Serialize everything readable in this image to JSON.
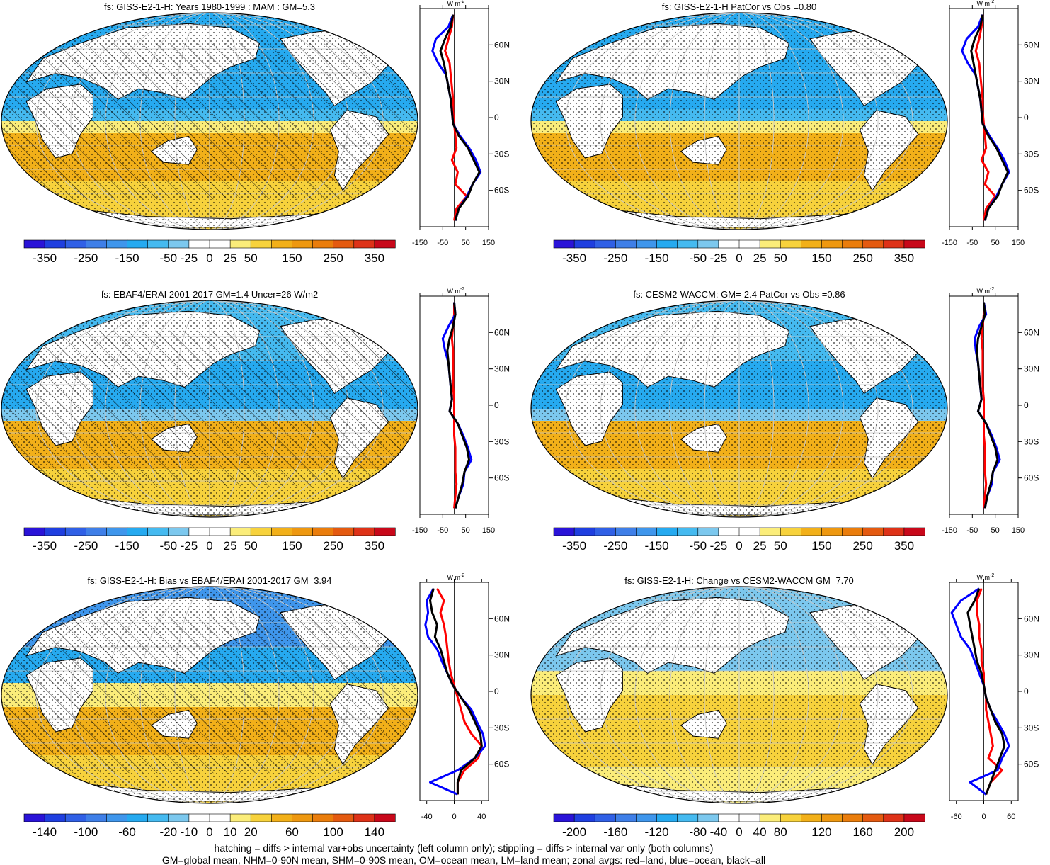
{
  "figure": {
    "caption_line1": "hatching = diffs > internal var+obs uncertainty (left column only); stippling = diffs > internal var only (both columns)",
    "caption_line2": "GM=global mean, NHM=0-90N mean, SHM=0-90S mean, OM=ocean mean, LM=land mean; zonal avgs: red=land, blue=ocean, black=all",
    "unit_label": "W m",
    "unit_exponent": "-2",
    "lat_ticks": [
      "60N",
      "30N",
      "0",
      "30S",
      "60S"
    ],
    "colors": {
      "land_curve": "#ff0000",
      "ocean_curve": "#0000ff",
      "all_curve": "#000000",
      "land_fill": "#ffffff",
      "coastline": "#000000"
    },
    "palette_full": [
      "#2a13d8",
      "#1f3fe0",
      "#3060e6",
      "#3f7fe8",
      "#3f96ec",
      "#26aaf0",
      "#45baf0",
      "#7cc8ee",
      "#ffffff",
      "#ffffff",
      "#fbed7a",
      "#f7d23c",
      "#f2b019",
      "#ee9810",
      "#ea7d0c",
      "#e45a10",
      "#de3218",
      "#c8081a"
    ]
  },
  "chart_data": [
    {
      "type": "heatmap",
      "panel": "row1-left",
      "title": "fs: GISS-E2-1-H: Years 1980-1999 : MAM : GM=5.3",
      "overlay": "hatching+stippling",
      "colorbar_labels": [
        "-350",
        "-250",
        "-150",
        "-50",
        "-25",
        "0",
        "25",
        "50",
        "150",
        "250",
        "350"
      ],
      "zonal_xlim": [
        -150,
        150
      ],
      "zonal_xticks": [
        "-150",
        "-50",
        "50",
        "150"
      ],
      "pattern": "mainly_positive",
      "zonal_mean": {
        "lat": [
          85,
          75,
          65,
          55,
          45,
          35,
          25,
          15,
          5,
          -5,
          -15,
          -25,
          -35,
          -45,
          -55,
          -65,
          -75,
          -85
        ],
        "all": [
          -5,
          -15,
          -40,
          -60,
          -45,
          -35,
          -25,
          -15,
          -10,
          -5,
          20,
          60,
          85,
          110,
          80,
          60,
          20,
          5
        ],
        "ocean": [
          -5,
          -25,
          -80,
          -95,
          -70,
          -35,
          -25,
          -15,
          -10,
          -5,
          25,
          65,
          95,
          115,
          80,
          55,
          20,
          5
        ],
        "land": [
          -5,
          -10,
          -25,
          -40,
          -20,
          -15,
          -10,
          -5,
          -5,
          0,
          5,
          10,
          -10,
          15,
          5,
          55,
          10,
          0
        ]
      }
    },
    {
      "type": "heatmap",
      "panel": "row1-right",
      "title": "fs: GISS-E2-1-H PatCor vs Obs =0.80",
      "overlay": "stippling",
      "colorbar_labels": [
        "-350",
        "-250",
        "-150",
        "-50",
        "-25",
        "0",
        "25",
        "50",
        "150",
        "250",
        "350"
      ],
      "zonal_xlim": [
        -150,
        150
      ],
      "zonal_xticks": [
        "-150",
        "-50",
        "50",
        "150"
      ],
      "pattern": "mainly_positive",
      "zonal_mean": {
        "lat": [
          85,
          75,
          65,
          55,
          45,
          35,
          25,
          15,
          5,
          -5,
          -15,
          -25,
          -35,
          -45,
          -55,
          -65,
          -75,
          -85
        ],
        "all": [
          -5,
          -15,
          -40,
          -55,
          -45,
          -35,
          -25,
          -15,
          -10,
          -5,
          20,
          55,
          80,
          105,
          80,
          60,
          20,
          5
        ],
        "ocean": [
          -5,
          -25,
          -75,
          -95,
          -70,
          -35,
          -25,
          -15,
          -10,
          -5,
          25,
          60,
          90,
          110,
          80,
          55,
          20,
          5
        ],
        "land": [
          -5,
          -10,
          -20,
          -35,
          -20,
          -15,
          -10,
          -5,
          -5,
          0,
          5,
          10,
          -10,
          20,
          5,
          50,
          10,
          0
        ]
      }
    },
    {
      "type": "heatmap",
      "panel": "row2-left",
      "title": "fs: EBAF4/ERAI 2001-2017 GM=1.4 Uncer=26 W/m2",
      "overlay": "hatching+stippling",
      "colorbar_labels": [
        "-350",
        "-250",
        "-150",
        "-50",
        "-25",
        "0",
        "25",
        "50",
        "150",
        "250",
        "350"
      ],
      "zonal_xlim": [
        -150,
        150
      ],
      "zonal_xticks": [
        "-150",
        "-50",
        "50",
        "150"
      ],
      "pattern": "mixed",
      "zonal_mean": {
        "lat": [
          85,
          75,
          65,
          55,
          45,
          35,
          25,
          15,
          5,
          -5,
          -15,
          -25,
          -35,
          -45,
          -55,
          -65,
          -75,
          -85
        ],
        "all": [
          0,
          5,
          -5,
          -20,
          -30,
          -25,
          -20,
          -15,
          -10,
          -20,
          15,
          35,
          55,
          65,
          45,
          35,
          20,
          5
        ],
        "ocean": [
          0,
          5,
          -25,
          -50,
          -40,
          -25,
          -20,
          -15,
          -10,
          -20,
          15,
          40,
          60,
          75,
          45,
          40,
          20,
          5
        ],
        "land": [
          0,
          0,
          -5,
          -10,
          -5,
          -5,
          -5,
          -5,
          0,
          0,
          0,
          0,
          5,
          5,
          5,
          10,
          5,
          0
        ]
      }
    },
    {
      "type": "heatmap",
      "panel": "row2-right",
      "title": "fs: CESM2-WACCM: GM=-2.4 PatCor vs Obs =0.86",
      "overlay": "stippling",
      "colorbar_labels": [
        "-350",
        "-250",
        "-150",
        "-50",
        "-25",
        "0",
        "25",
        "50",
        "150",
        "250",
        "350"
      ],
      "zonal_xlim": [
        -150,
        150
      ],
      "zonal_xticks": [
        "-150",
        "-50",
        "50",
        "150"
      ],
      "pattern": "mixed",
      "zonal_mean": {
        "lat": [
          85,
          75,
          65,
          55,
          45,
          35,
          25,
          15,
          5,
          -5,
          -15,
          -25,
          -35,
          -45,
          -55,
          -65,
          -75,
          -85
        ],
        "all": [
          0,
          5,
          -10,
          -25,
          -30,
          -25,
          -20,
          -15,
          -10,
          -25,
          10,
          30,
          50,
          60,
          40,
          30,
          15,
          5
        ],
        "ocean": [
          0,
          10,
          -20,
          -40,
          -35,
          -25,
          -20,
          -15,
          -10,
          -25,
          10,
          35,
          55,
          70,
          40,
          35,
          15,
          5
        ],
        "land": [
          0,
          0,
          -5,
          -10,
          -5,
          -5,
          -5,
          -5,
          0,
          0,
          0,
          0,
          5,
          5,
          5,
          10,
          5,
          0
        ]
      }
    },
    {
      "type": "heatmap",
      "panel": "row3-left",
      "title": "fs: GISS-E2-1-H: Bias vs EBAF4/ERAI 2001-2017 GM=3.94",
      "overlay": "hatching+stippling",
      "colorbar_labels": [
        "-140",
        "-100",
        "-60",
        "-20",
        "-10",
        "0",
        "10",
        "20",
        "60",
        "100",
        "140"
      ],
      "zonal_xlim": [
        -50,
        50
      ],
      "zonal_xticks": [
        "-40",
        "0",
        "40"
      ],
      "pattern": "bias",
      "zonal_mean": {
        "lat": [
          85,
          75,
          65,
          55,
          45,
          35,
          25,
          15,
          5,
          -5,
          -15,
          -25,
          -35,
          -45,
          -55,
          -65,
          -75,
          -85
        ],
        "all": [
          -30,
          -35,
          -32,
          -25,
          -28,
          -20,
          -15,
          -10,
          -2,
          10,
          22,
          30,
          38,
          40,
          30,
          10,
          5,
          5
        ],
        "ocean": [
          -30,
          -40,
          -38,
          -42,
          -38,
          -25,
          -18,
          -10,
          -2,
          10,
          25,
          33,
          42,
          45,
          30,
          5,
          -35,
          5
        ],
        "land": [
          -25,
          -15,
          -20,
          -15,
          -12,
          -10,
          -8,
          -5,
          0,
          5,
          10,
          15,
          25,
          40,
          35,
          15,
          5,
          5
        ]
      }
    },
    {
      "type": "heatmap",
      "panel": "row3-right",
      "title": "fs: GISS-E2-1-H: Change vs CESM2-WACCM GM=7.70",
      "overlay": "stippling",
      "colorbar_labels": [
        "-200",
        "-160",
        "-120",
        "-80",
        "-40",
        "0",
        "40",
        "80",
        "120",
        "160",
        "200"
      ],
      "zonal_xlim": [
        -75,
        75
      ],
      "zonal_xticks": [
        "-60",
        "0",
        "60"
      ],
      "pattern": "change",
      "zonal_mean": {
        "lat": [
          85,
          75,
          65,
          55,
          45,
          35,
          25,
          15,
          5,
          -5,
          -15,
          -25,
          -35,
          -45,
          -55,
          -65,
          -75,
          -85
        ],
        "all": [
          -10,
          -20,
          -35,
          -30,
          -25,
          -20,
          -15,
          -5,
          0,
          5,
          15,
          25,
          40,
          45,
          35,
          25,
          15,
          5
        ],
        "ocean": [
          -10,
          -50,
          -70,
          -60,
          -50,
          -30,
          -20,
          -10,
          0,
          5,
          15,
          30,
          45,
          55,
          40,
          30,
          -30,
          5
        ],
        "land": [
          -5,
          -15,
          -15,
          -10,
          -10,
          -5,
          -5,
          0,
          0,
          5,
          5,
          10,
          15,
          20,
          10,
          40,
          15,
          5
        ]
      }
    }
  ]
}
